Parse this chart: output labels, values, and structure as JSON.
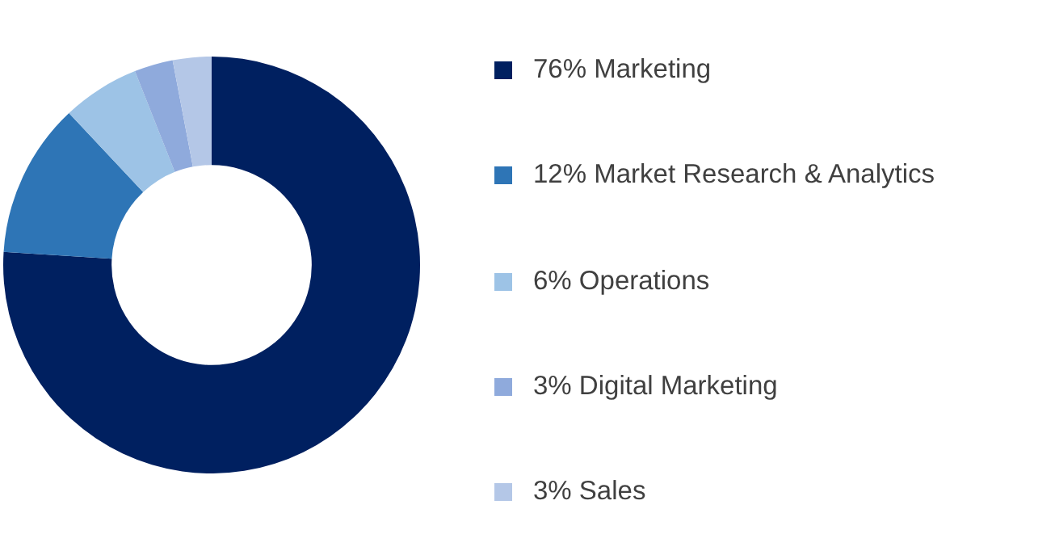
{
  "chart_data": {
    "type": "donut",
    "categories": [
      "Marketing",
      "Market Research & Analytics",
      "Operations",
      "Digital Marketing",
      "Sales"
    ],
    "values": [
      76,
      12,
      6,
      3,
      3
    ],
    "value_labels": [
      "76%",
      "12%",
      "6%",
      "3%",
      "3%"
    ],
    "colors": [
      "#002060",
      "#2e75b6",
      "#9dc3e6",
      "#8faadc",
      "#b4c7e7"
    ],
    "legend": "right"
  }
}
